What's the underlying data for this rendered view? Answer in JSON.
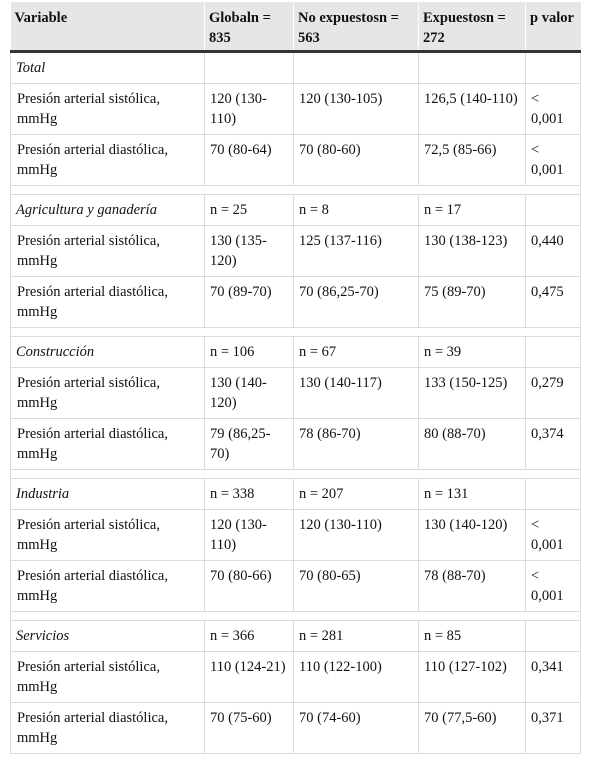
{
  "header": {
    "col_variable": "Variable",
    "col_global": "Globaln = 835",
    "col_no_exp": "No expuestosn = 563",
    "col_exp": "Expuestosn = 272",
    "col_p": "p valor"
  },
  "groups": [
    {
      "name": "Total",
      "global_n": "",
      "no_exp_n": "",
      "exp_n": "",
      "rows": [
        {
          "variable": "Presión arterial sistólica, mmHg",
          "global": "120 (130-110)",
          "no_exp": "120 (130-105)",
          "exp": "126,5 (140-110)",
          "p": "< 0,001"
        },
        {
          "variable": "Presión arterial diastólica, mmHg",
          "global": "70 (80-64)",
          "no_exp": "70 (80-60)",
          "exp": "72,5 (85-66)",
          "p": "< 0,001"
        }
      ]
    },
    {
      "name": "Agricultura y ganadería",
      "global_n": "n = 25",
      "no_exp_n": "n = 8",
      "exp_n": "n = 17",
      "rows": [
        {
          "variable": "Presión arterial sistólica, mmHg",
          "global": "130 (135-120)",
          "no_exp": "125 (137-116)",
          "exp": "130 (138-123)",
          "p": "0,440"
        },
        {
          "variable": "Presión arterial diastólica, mmHg",
          "global": "70 (89-70)",
          "no_exp": "70 (86,25-70)",
          "exp": "75 (89-70)",
          "p": "0,475"
        }
      ]
    },
    {
      "name": "Construcción",
      "global_n": "n = 106",
      "no_exp_n": "n = 67",
      "exp_n": "n = 39",
      "rows": [
        {
          "variable": "Presión arterial sistólica, mmHg",
          "global": "130 (140-120)",
          "no_exp": "130 (140-117)",
          "exp": "133 (150-125)",
          "p": "0,279"
        },
        {
          "variable": "Presión arterial diastólica, mmHg",
          "global": "79 (86,25-70)",
          "no_exp": "78 (86-70)",
          "exp": "80 (88-70)",
          "p": "0,374"
        }
      ]
    },
    {
      "name": "Industria",
      "global_n": "n = 338",
      "no_exp_n": "n = 207",
      "exp_n": "n = 131",
      "rows": [
        {
          "variable": "Presión arterial sistólica, mmHg",
          "global": "120 (130-110)",
          "no_exp": "120 (130-110)",
          "exp": "130 (140-120)",
          "p": "< 0,001"
        },
        {
          "variable": "Presión arterial diastólica, mmHg",
          "global": "70 (80-66)",
          "no_exp": "70 (80-65)",
          "exp": "78 (88-70)",
          "p": "< 0,001"
        }
      ]
    },
    {
      "name": "Servicios",
      "global_n": "n = 366",
      "no_exp_n": "n = 281",
      "exp_n": "n = 85",
      "rows": [
        {
          "variable": "Presión arterial sistólica, mmHg",
          "global": "110 (124-21)",
          "no_exp": "110 (122-100)",
          "exp": "110 (127-102)",
          "p": "0,341"
        },
        {
          "variable": "Presión arterial diastólica, mmHg",
          "global": "70 (75-60)",
          "no_exp": "70 (74-60)",
          "exp": "70 (77,5-60)",
          "p": "0,371"
        }
      ]
    }
  ]
}
